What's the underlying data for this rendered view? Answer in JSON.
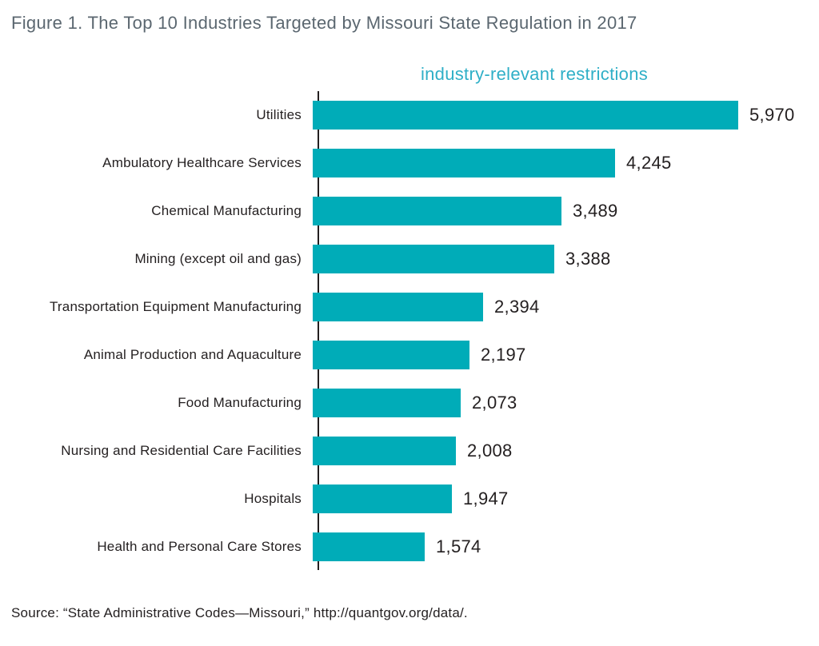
{
  "figure": {
    "title": "Figure 1. The Top 10 Industries Targeted by Missouri State Regulation in 2017",
    "source": "Source: “State Administrative Codes—Missouri,” http://quantgov.org/data/."
  },
  "chart_data": {
    "type": "bar",
    "orientation": "horizontal",
    "title": "industry-relevant restrictions",
    "categories": [
      "Utilities",
      "Ambulatory Healthcare Services",
      "Chemical Manufacturing",
      "Mining (except oil and gas)",
      "Transportation Equipment Manufacturing",
      "Animal Production and Aquaculture",
      "Food Manufacturing",
      "Nursing and Residential Care Facilities",
      "Hospitals",
      "Health and Personal Care Stores"
    ],
    "values": [
      5970,
      4245,
      3489,
      3388,
      2394,
      2197,
      2073,
      2008,
      1947,
      1574
    ],
    "value_labels": [
      "5,970",
      "4,245",
      "3,489",
      "3,388",
      "2,394",
      "2,197",
      "2,073",
      "2,008",
      "1,947",
      "1,574"
    ],
    "xlabel": "",
    "ylabel": "",
    "xlim": [
      0,
      5970
    ],
    "grid": false,
    "legend": false,
    "data_labels_position": "right-of-bar",
    "colors": {
      "bar": "#00acb8",
      "subtitle": "#2fafc7",
      "figure_title": "#5b6770",
      "text": "#231f20",
      "axis_line": "#231f20"
    }
  }
}
